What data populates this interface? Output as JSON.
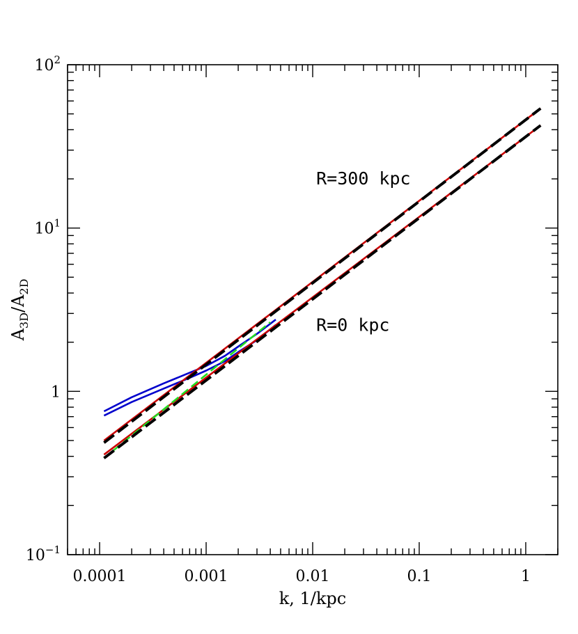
{
  "chart_data": {
    "type": "line",
    "xlabel": "k, 1/kpc",
    "ylabel_main": "A",
    "ylabel_sub1": "3D",
    "ylabel_sub2": "2D",
    "x_scale": "log",
    "y_scale": "log",
    "xlim": [
      5e-05,
      2.0
    ],
    "ylim": [
      0.1,
      100
    ],
    "x_ticks": [
      {
        "value": 0.0001,
        "label": "0.0001"
      },
      {
        "value": 0.001,
        "label": "0.001"
      },
      {
        "value": 0.01,
        "label": "0.01"
      },
      {
        "value": 0.1,
        "label": "0.1"
      },
      {
        "value": 1,
        "label": "1"
      }
    ],
    "y_ticks": [
      {
        "value": 0.1,
        "base": "10",
        "exp": "−1"
      },
      {
        "value": 1,
        "base": "1",
        "exp": ""
      },
      {
        "value": 10,
        "base": "10",
        "exp": "1"
      },
      {
        "value": 100,
        "base": "10",
        "exp": "2"
      }
    ],
    "grid": false,
    "annotations": [
      {
        "text": "R=300 kpc",
        "x": 0.0108,
        "y": 18.5
      },
      {
        "text": "R=0 kpc",
        "x": 0.0108,
        "y": 2.35
      }
    ],
    "series": [
      {
        "color": "#0000cc",
        "dash": "solid",
        "x": [
          0.00011,
          0.0002,
          0.0004,
          0.0007,
          0.001,
          0.0015,
          0.002,
          0.003,
          0.0045
        ],
        "y": [
          0.755,
          0.92,
          1.12,
          1.3,
          1.43,
          1.65,
          1.88,
          2.25,
          2.75
        ]
      },
      {
        "color": "#0000cc",
        "dash": "solid",
        "x": [
          0.00011,
          0.0002,
          0.0004,
          0.0007,
          0.001,
          0.0015,
          0.002,
          0.003,
          0.0045
        ],
        "y": [
          0.71,
          0.86,
          1.04,
          1.21,
          1.34,
          1.53,
          1.74,
          2.06,
          2.55
        ]
      },
      {
        "color": "#cc0000",
        "dash": "solid",
        "x": [
          0.00011,
          1.38
        ],
        "y": [
          0.5,
          54
        ]
      },
      {
        "color": "#cc0000",
        "dash": "solid",
        "x": [
          0.00011,
          1.38
        ],
        "y": [
          0.41,
          42.5
        ]
      },
      {
        "color": "#22dd22",
        "dash": "dashed",
        "x": [
          0.00011,
          0.004
        ],
        "y": [
          0.39,
          2.65
        ]
      },
      {
        "color": "#000000",
        "dash": "dashed",
        "x": [
          0.00011,
          1.38
        ],
        "y": [
          0.485,
          54
        ]
      },
      {
        "color": "#000000",
        "dash": "dashed",
        "x": [
          0.00011,
          1.38
        ],
        "y": [
          0.39,
          42.5
        ]
      }
    ]
  }
}
